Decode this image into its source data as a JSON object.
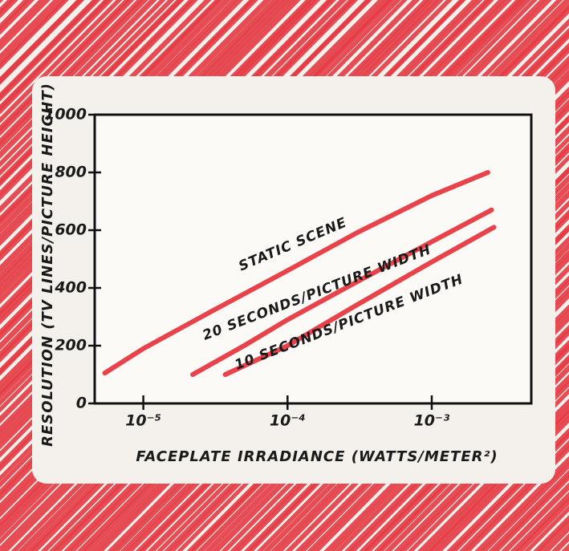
{
  "chart_data": {
    "type": "line",
    "xlabel": "FACEPLATE IRRADIANCE (WATTS/METER²)",
    "ylabel": "RESOLUTION (TV LINES/PICTURE HEIGHT)",
    "xscale": "log",
    "xlim": [
      4.6e-06,
      0.0049
    ],
    "ylim": [
      0,
      1000
    ],
    "xticks": [
      {
        "value": 1e-05,
        "label": "10⁻⁵"
      },
      {
        "value": 0.0001,
        "label": "10⁻⁴"
      },
      {
        "value": 0.001,
        "label": "10⁻³"
      }
    ],
    "yticks": [
      0,
      200,
      400,
      600,
      800,
      1000
    ],
    "series": [
      {
        "name": "STATIC SCENE",
        "color": "#e8424a",
        "x": [
          5.4e-06,
          1e-05,
          3e-05,
          0.0001,
          0.0003,
          0.001,
          0.00245
        ],
        "values": [
          105,
          190,
          320,
          460,
          590,
          720,
          800
        ]
      },
      {
        "name": "20 SECONDS/PICTURE WIDTH",
        "color": "#e8424a",
        "x": [
          2.2e-05,
          5e-05,
          0.0001,
          0.0003,
          0.001,
          0.0026
        ],
        "values": [
          100,
          200,
          290,
          420,
          560,
          670
        ]
      },
      {
        "name": "10 SECONDS/PICTURE WIDTH",
        "color": "#e8424a",
        "x": [
          3.7e-05,
          0.0001,
          0.0003,
          0.001,
          0.0027
        ],
        "values": [
          100,
          200,
          340,
          490,
          610
        ]
      }
    ]
  }
}
